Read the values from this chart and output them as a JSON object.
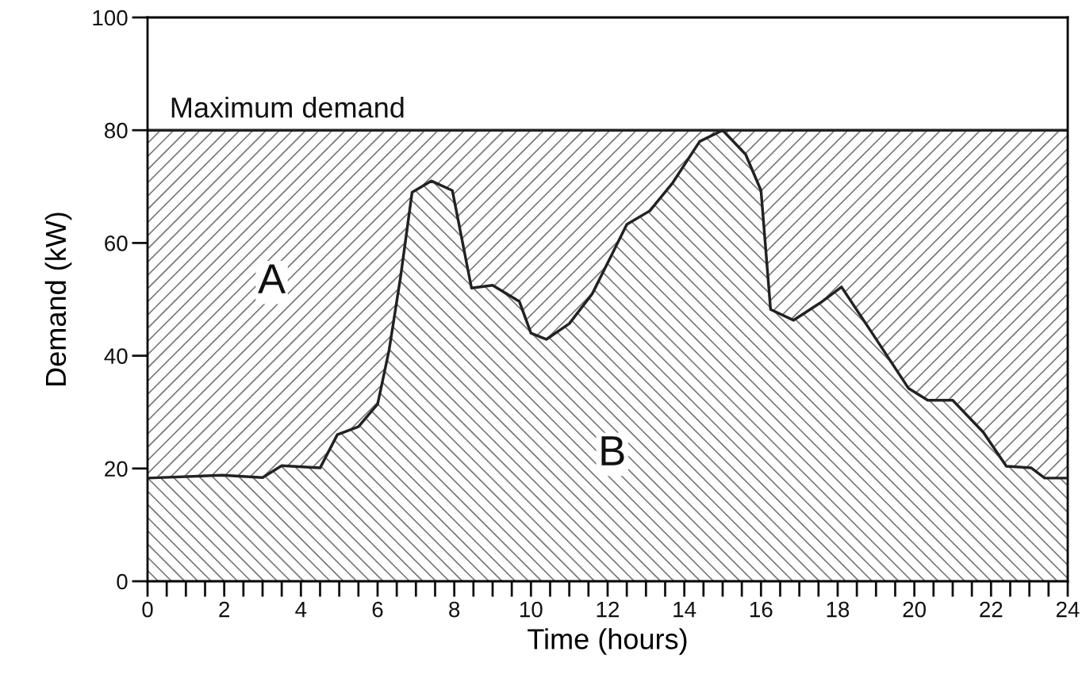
{
  "chart_data": {
    "type": "area",
    "stacked": true,
    "xlabel": "Time (hours)",
    "ylabel": "Demand (kW)",
    "x": [
      0,
      1.95,
      3.0,
      3.5,
      4.5,
      4.95,
      5.5,
      6.0,
      6.3,
      6.6,
      6.9,
      7.4,
      7.95,
      8.45,
      9.0,
      9.7,
      10.0,
      10.4,
      11.0,
      11.6,
      12.1,
      12.5,
      13.1,
      13.7,
      14.4,
      15.0,
      15.6,
      16.0,
      16.25,
      16.85,
      17.55,
      18.1,
      18.9,
      19.85,
      20.35,
      21.0,
      21.8,
      22.4,
      23.05,
      23.4,
      24
    ],
    "series": [
      {
        "color": "#777777",
        "values": [
          18.3,
          18.8,
          18.4,
          20.5,
          20.1,
          26,
          27.4,
          31.4,
          41,
          54,
          69,
          71,
          69.3,
          52,
          52.5,
          49.6,
          44,
          42.9,
          45.7,
          51,
          57.8,
          63.3,
          65.7,
          70.7,
          78,
          80,
          75.7,
          69.3,
          48.2,
          46.3,
          49.4,
          52.2,
          44,
          34.2,
          32.1,
          32.1,
          26.4,
          20.4,
          20.1,
          18.3,
          18.3
        ]
      },
      {
        "color": "#777777",
        "values": [
          61.7,
          61.2,
          61.6,
          59.5,
          59.9,
          54,
          52.6,
          48.6,
          39,
          26,
          11,
          9,
          10.7,
          28,
          27.5,
          30.4,
          36,
          37.1,
          34.3,
          29,
          22.2,
          16.7,
          14.3,
          9.3,
          2,
          0,
          4.3,
          10.7,
          31.8,
          33.7,
          30.6,
          27.8,
          36,
          45.8,
          47.9,
          47.9,
          53.6,
          59.6,
          59.9,
          61.7,
          61.7
        ]
      }
    ],
    "xlim": [
      0,
      24
    ],
    "xticks": [
      0,
      2,
      4,
      6,
      8,
      10,
      12,
      14,
      16,
      18,
      20,
      22,
      24
    ],
    "ylim": [
      0,
      100
    ],
    "yticks": [
      0,
      20,
      40,
      60,
      80,
      100
    ],
    "ref_lines": [
      {
        "axis": "y",
        "value": 80,
        "label": "Maximum demand",
        "color": "#222222"
      }
    ],
    "annotations": [
      "A",
      "B"
    ],
    "grid": false,
    "legend": false
  }
}
